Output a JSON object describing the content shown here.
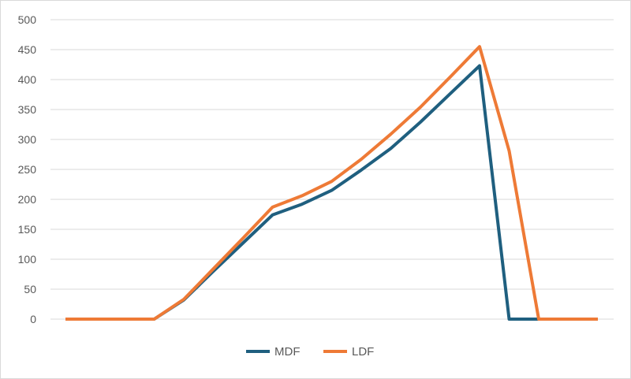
{
  "chart_data": {
    "type": "line",
    "title": "",
    "xlabel": "",
    "ylabel": "",
    "ylim": [
      0,
      500
    ],
    "yticks": [
      0,
      50,
      100,
      150,
      200,
      250,
      300,
      350,
      400,
      450,
      500
    ],
    "grid": true,
    "legend_position": "bottom",
    "x": [
      1,
      2,
      3,
      4,
      5,
      6,
      7,
      8,
      9,
      10,
      11,
      12,
      13,
      14,
      15,
      16,
      17,
      18,
      19
    ],
    "series": [
      {
        "name": "MDF",
        "color": "#1f5f7f",
        "values": [
          0,
          0,
          0,
          0,
          32,
          80,
          127,
          174,
          192,
          215,
          249,
          285,
          329,
          376,
          423,
          0,
          0,
          0,
          0
        ]
      },
      {
        "name": "LDF",
        "color": "#ee7a36",
        "values": [
          0,
          0,
          0,
          0,
          33,
          84,
          135,
          187,
          206,
          230,
          267,
          309,
          354,
          404,
          455,
          281,
          0,
          0,
          0
        ]
      }
    ]
  }
}
